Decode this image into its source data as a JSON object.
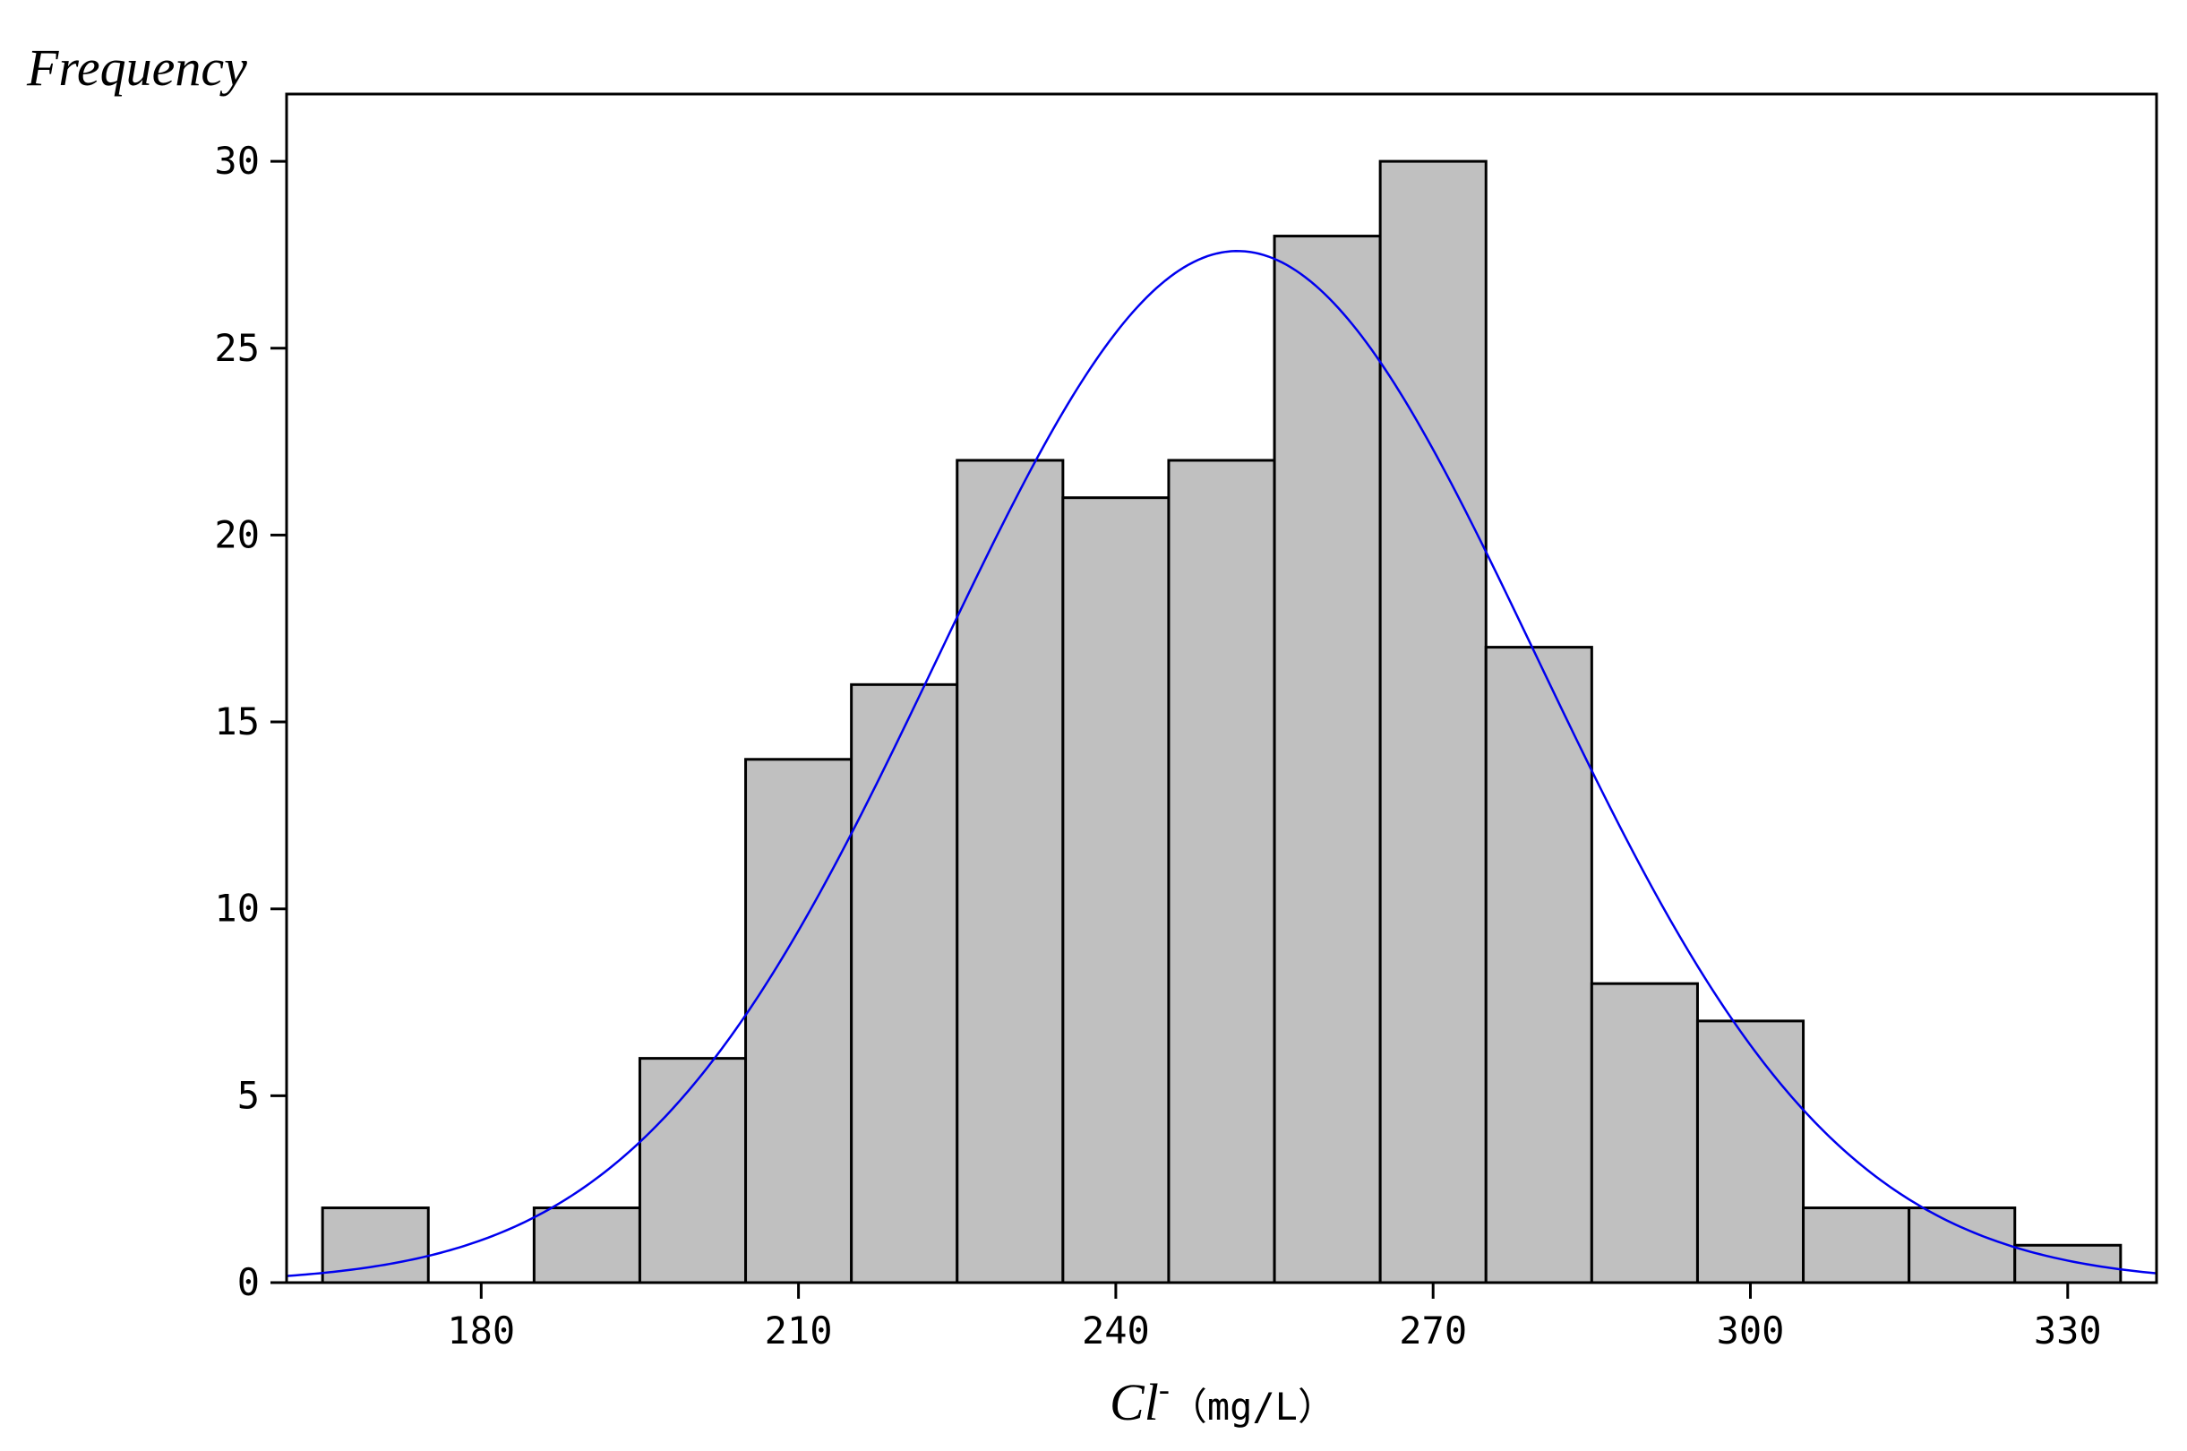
{
  "chart_data": {
    "type": "bar",
    "subtype": "histogram",
    "ylabel": "Frequency",
    "xlabel": {
      "symbol": "Cl",
      "superscript": "-",
      "unit": "（mg/L）"
    },
    "bin_width": 10,
    "bins": [
      {
        "start": 165,
        "end": 175,
        "count": 2
      },
      {
        "start": 175,
        "end": 185,
        "count": 0
      },
      {
        "start": 185,
        "end": 195,
        "count": 2
      },
      {
        "start": 195,
        "end": 205,
        "count": 6
      },
      {
        "start": 205,
        "end": 215,
        "count": 14
      },
      {
        "start": 215,
        "end": 225,
        "count": 16
      },
      {
        "start": 225,
        "end": 235,
        "count": 22
      },
      {
        "start": 235,
        "end": 245,
        "count": 21
      },
      {
        "start": 245,
        "end": 255,
        "count": 22
      },
      {
        "start": 255,
        "end": 265,
        "count": 28
      },
      {
        "start": 265,
        "end": 275,
        "count": 30
      },
      {
        "start": 275,
        "end": 285,
        "count": 17
      },
      {
        "start": 285,
        "end": 295,
        "count": 8
      },
      {
        "start": 295,
        "end": 305,
        "count": 7
      },
      {
        "start": 305,
        "end": 315,
        "count": 2
      },
      {
        "start": 315,
        "end": 325,
        "count": 2
      },
      {
        "start": 325,
        "end": 335,
        "count": 1
      }
    ],
    "normal_curve": {
      "mean": 251.5,
      "sd": 28.3,
      "peak": 27.6
    },
    "xlim": [
      161.6,
      338.4
    ],
    "ylim": [
      0,
      31.8
    ],
    "xticks": [
      "180",
      "210",
      "240",
      "270",
      "300",
      "330"
    ],
    "yticks": [
      "0",
      "5",
      "10",
      "15",
      "20",
      "25",
      "30"
    ],
    "grid": false,
    "legend": "none",
    "colors": {
      "bar_fill": "#c0c0c0",
      "bar_edge": "#000000",
      "curve": "#0000ee",
      "axis": "#000000"
    }
  }
}
